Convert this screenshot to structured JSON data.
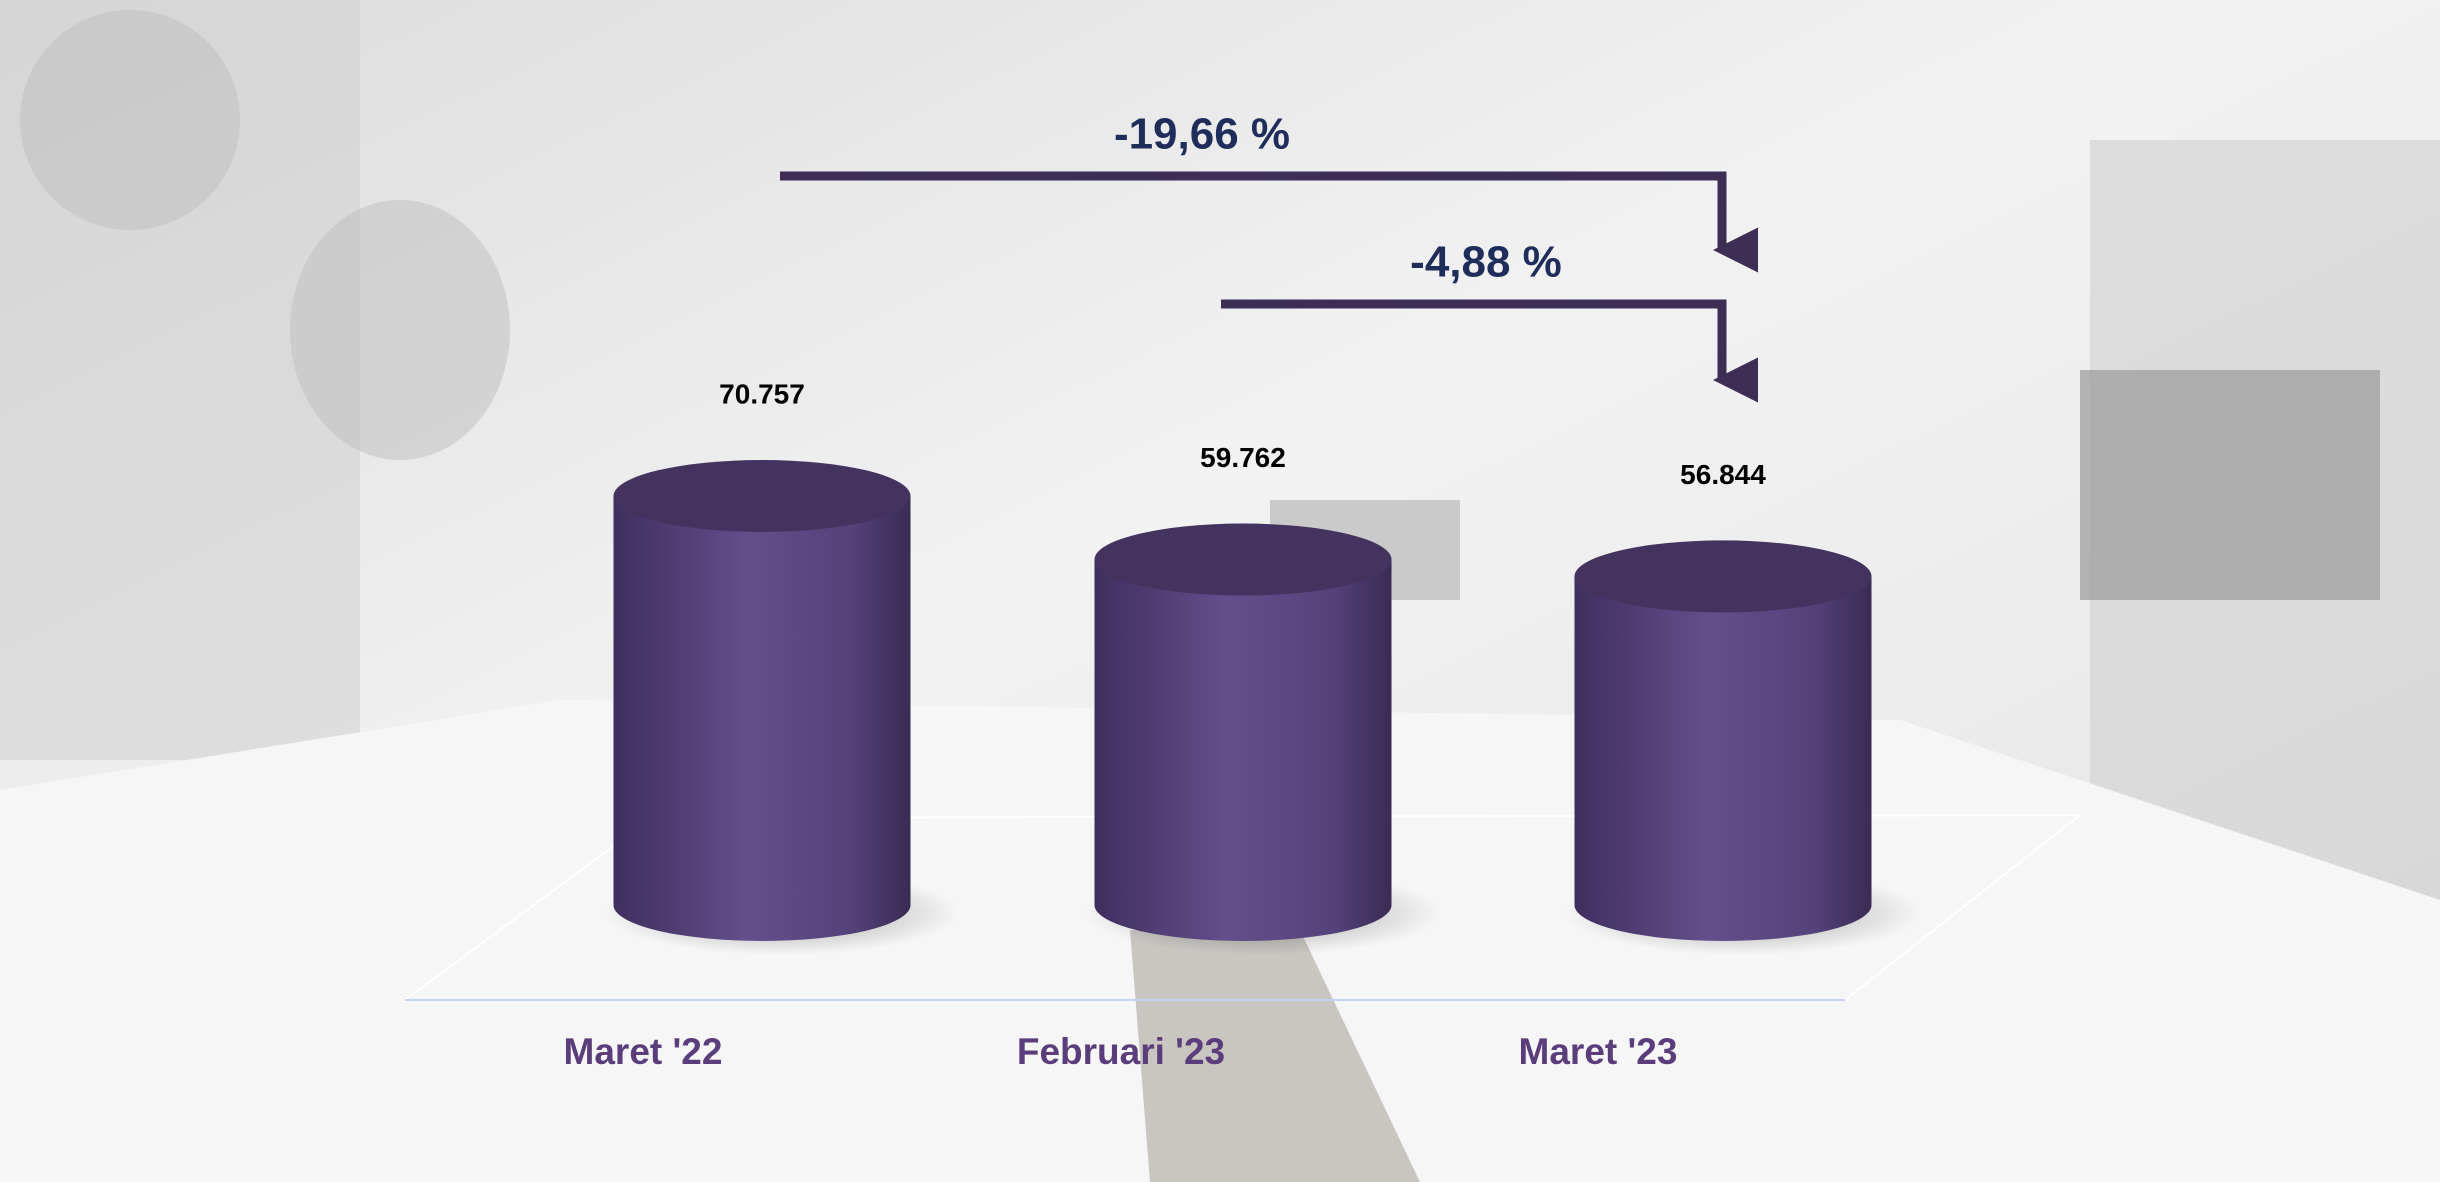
{
  "chart_data": {
    "type": "cylinder",
    "categories": [
      "Maret '22",
      "Februari '23",
      "Maret '23"
    ],
    "values": [
      70757,
      59762,
      56844
    ],
    "value_labels": [
      "70.757",
      "59.762",
      "56.844"
    ],
    "color": "#5a4681",
    "annotations": [
      "-19,66 %",
      "-4,88 %"
    ]
  }
}
